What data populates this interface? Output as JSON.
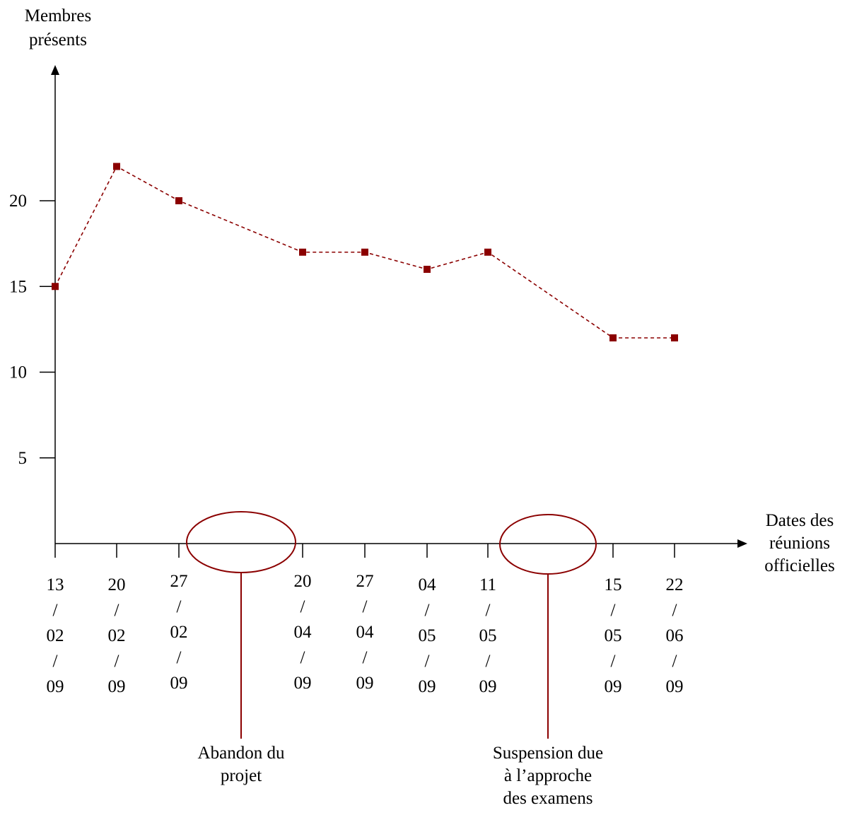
{
  "chart_data": {
    "type": "line",
    "ylabel": [
      "Membres",
      "présents"
    ],
    "xlabel": [
      "Dates des",
      "réunions",
      "officielles"
    ],
    "y_ticks": [
      5,
      10,
      15,
      20
    ],
    "categories": [
      [
        "13",
        "/",
        "02",
        "/",
        "09"
      ],
      [
        "20",
        "/",
        "02",
        "/",
        "09"
      ],
      [
        "27",
        "/",
        "02",
        "/",
        "09"
      ],
      [
        "20",
        "/",
        "04",
        "/",
        "09"
      ],
      [
        "27",
        "/",
        "04",
        "/",
        "09"
      ],
      [
        "04",
        "/",
        "05",
        "/",
        "09"
      ],
      [
        "11",
        "/",
        "05",
        "/",
        "09"
      ],
      [
        "15",
        "/",
        "05",
        "/",
        "09"
      ],
      [
        "22",
        "/",
        "06",
        "/",
        "09"
      ]
    ],
    "values": [
      15,
      22,
      20,
      17,
      17,
      16,
      17,
      12,
      12
    ],
    "ylim": [
      0,
      27
    ],
    "line_style": "dashed",
    "marker": "square",
    "series_color": "#8b0000",
    "annotations": [
      {
        "text": [
          "Abandon du",
          "projet"
        ],
        "between": [
          "27/02/09",
          "20/04/09"
        ]
      },
      {
        "text": [
          "Suspension due",
          "à l’approche",
          "des examens"
        ],
        "between": [
          "11/05/09",
          "15/05/09"
        ]
      }
    ]
  }
}
